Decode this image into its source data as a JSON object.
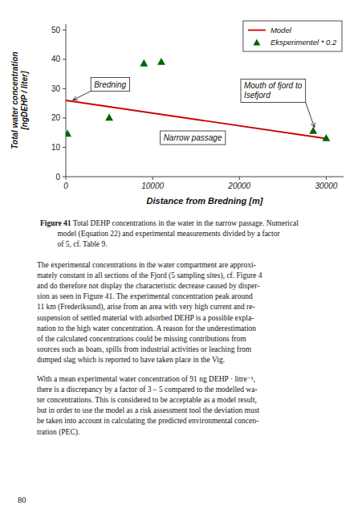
{
  "chart_data": {
    "type": "line",
    "xlabel": "Distance from Bredning [m]",
    "ylabel": "Total water concentration\n[ngDEHP / liter]",
    "xlim": [
      0,
      32000
    ],
    "ylim": [
      0,
      52
    ],
    "xticks": [
      0,
      10000,
      20000,
      30000
    ],
    "yticks": [
      0,
      10,
      20,
      30,
      40,
      50
    ],
    "grid": false,
    "legend": "upper right",
    "series": [
      {
        "name": "Model",
        "type": "line",
        "color": "#cc0000",
        "line_style": "solid",
        "x": [
          0,
          30000
        ],
        "values": [
          26.0,
          13.0
        ]
      },
      {
        "name": "Eksperimentel * 0.2",
        "type": "scatter",
        "color": "#006600",
        "marker": "triangle",
        "x": [
          200,
          5000,
          9000,
          11000,
          28500,
          30000
        ],
        "values": [
          14.5,
          20.0,
          38.5,
          39.0,
          15.5,
          13.0
        ]
      }
    ],
    "annotations": [
      {
        "text": "Bredning",
        "x": 400,
        "y": 25.5
      },
      {
        "text": "Narrow passage"
      },
      {
        "text": "Mouth of fjord to\nIsefjord",
        "x": 28800,
        "y": 15.5
      }
    ]
  },
  "text_blocks": {
    "caption_label": "Figure 41",
    "caption": " Total DEHP concentrations in the water in the narrow passage. Numerical\n         model (Equation 22) and experimental measurements divided by a factor\n         of 5, cf. Table 9.",
    "paragraphs": [
      "The experimental concentrations in the water compartment are approxi-\nmately constant in all sections of the Fjord (5 sampling sites), cf. Figure 4\nand do therefore not display the characteristic decrease caused by disper-\nsion as seen in Figure 41. The experimental concentration peak around\n11 km (Frederiksund), arise from an area with very high current and re-\nsuspension of settled material with adsorbed DEHP is a possible expla-\nnation to the high water concentration. A reason for the underestimation\nof the calculated concentrations could be missing contributions from\nsources such as boats, spills from industrial activities or leaching from\ndumped slag which is reported to have taken place in the Vig.",
      "With a mean experimental water concentration of 91 ng DEHP · litre⁻¹,\nthere is a discrepancy by a factor of 3 – 5 compared to the modelled wa-\nter concentrations. This is considered to be acceptable as a model result,\nbut in order to use the model as a risk assessment tool the deviation must\nbe taken into account in calculating the predicted environmental concen-\ntration (PEC)."
    ],
    "page_number": "80"
  }
}
